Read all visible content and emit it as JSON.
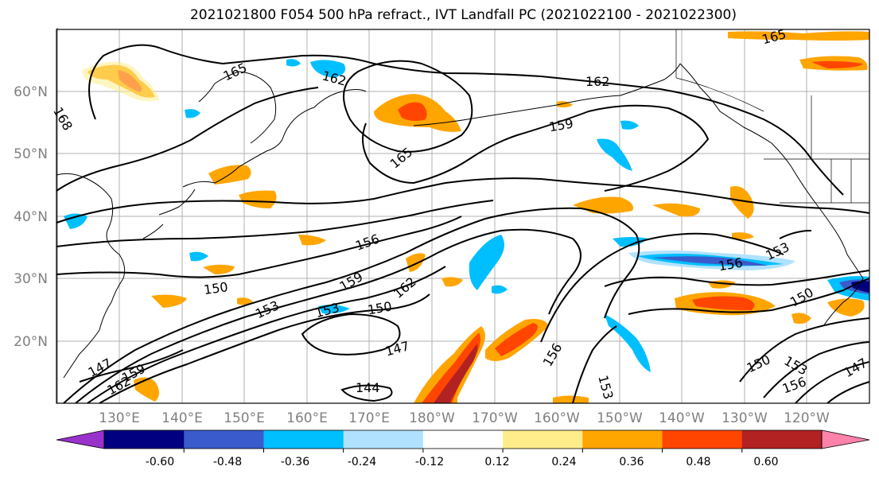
{
  "title": "2021021800 F054 500 hPa refract., IVT Landfall PC (2021022100 - 2021022300)",
  "map": {
    "lat_labels": [
      "60°N",
      "50°N",
      "40°N",
      "30°N",
      "20°N"
    ],
    "lon_labels": [
      "130°E",
      "140°E",
      "150°E",
      "160°E",
      "170°E",
      "180°W",
      "170°W",
      "160°W",
      "150°W",
      "140°W",
      "130°W",
      "120°W"
    ],
    "contour_labels": [
      "165",
      "162",
      "162",
      "165",
      "159",
      "168",
      "165",
      "156",
      "150",
      "159",
      "162",
      "153",
      "153",
      "150",
      "147",
      "147",
      "159",
      "162",
      "144",
      "156",
      "153",
      "156",
      "153",
      "150",
      "150",
      "153",
      "156",
      "147"
    ]
  },
  "colorbar": {
    "tick_labels": [
      "-0.60",
      "-0.48",
      "-0.36",
      "-0.24",
      "-0.12",
      "0.12",
      "0.24",
      "0.36",
      "0.48",
      "0.60"
    ],
    "colors": [
      "#9932cc",
      "#000080",
      "#3a5bcb",
      "#00bfff",
      "#b0e2ff",
      "#ffffff",
      "#ffec8b",
      "#ffa500",
      "#ff4500",
      "#b22222",
      "#ff82ab"
    ]
  }
}
